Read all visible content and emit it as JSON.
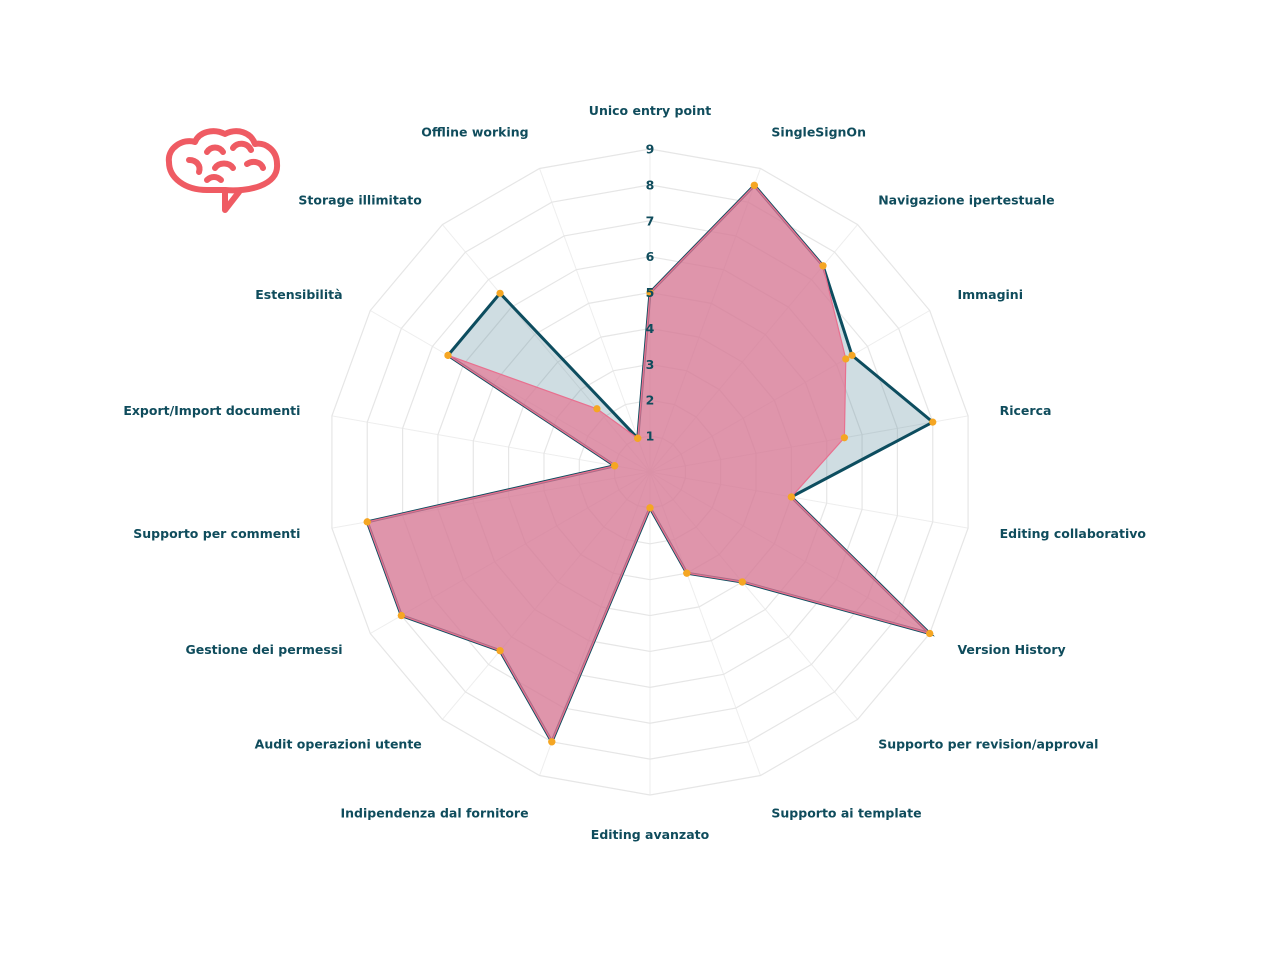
{
  "logo": {
    "icon": "brain-icon",
    "color": "#ef5b63"
  },
  "chart_data": {
    "type": "radar",
    "axes": [
      "Unico entry point",
      "SingleSignOn",
      "Navigazione ipertestuale",
      "Immagini",
      "Ricerca",
      "Editing collaborativo",
      "Version History",
      "Supporto per revision/approval",
      "Supporto ai template",
      "Editing avanzato",
      "Indipendenza dal fornitore",
      "Audit operazioni utente",
      "Gestione dei permessi",
      "Supporto per commenti",
      "Export/Import documenti",
      "Estensibilità",
      "Storage illimitato",
      "Offline working"
    ],
    "ticks": [
      "1",
      "2",
      "3",
      "4",
      "5",
      "6",
      "7",
      "8",
      "9"
    ],
    "range": [
      0,
      9
    ],
    "series": [
      {
        "values": [
          5,
          8.5,
          7.5,
          6.5,
          8,
          4,
          9,
          4,
          3,
          1,
          8,
          6.5,
          8,
          8,
          1,
          6.5,
          6.5,
          1
        ],
        "stroke": "#0d4d5f",
        "fill": "rgba(84,132,150,0.28)"
      },
      {
        "values": [
          5,
          8.5,
          7.5,
          6.3,
          5.5,
          4,
          9,
          4,
          3,
          1,
          8,
          6.5,
          8,
          8,
          1,
          6.5,
          2.3,
          1
        ],
        "stroke": "#e8708f",
        "fill": "rgba(228,120,150,0.72)"
      }
    ],
    "marker_color": "#f5a623",
    "grid": true,
    "legend": "none"
  }
}
